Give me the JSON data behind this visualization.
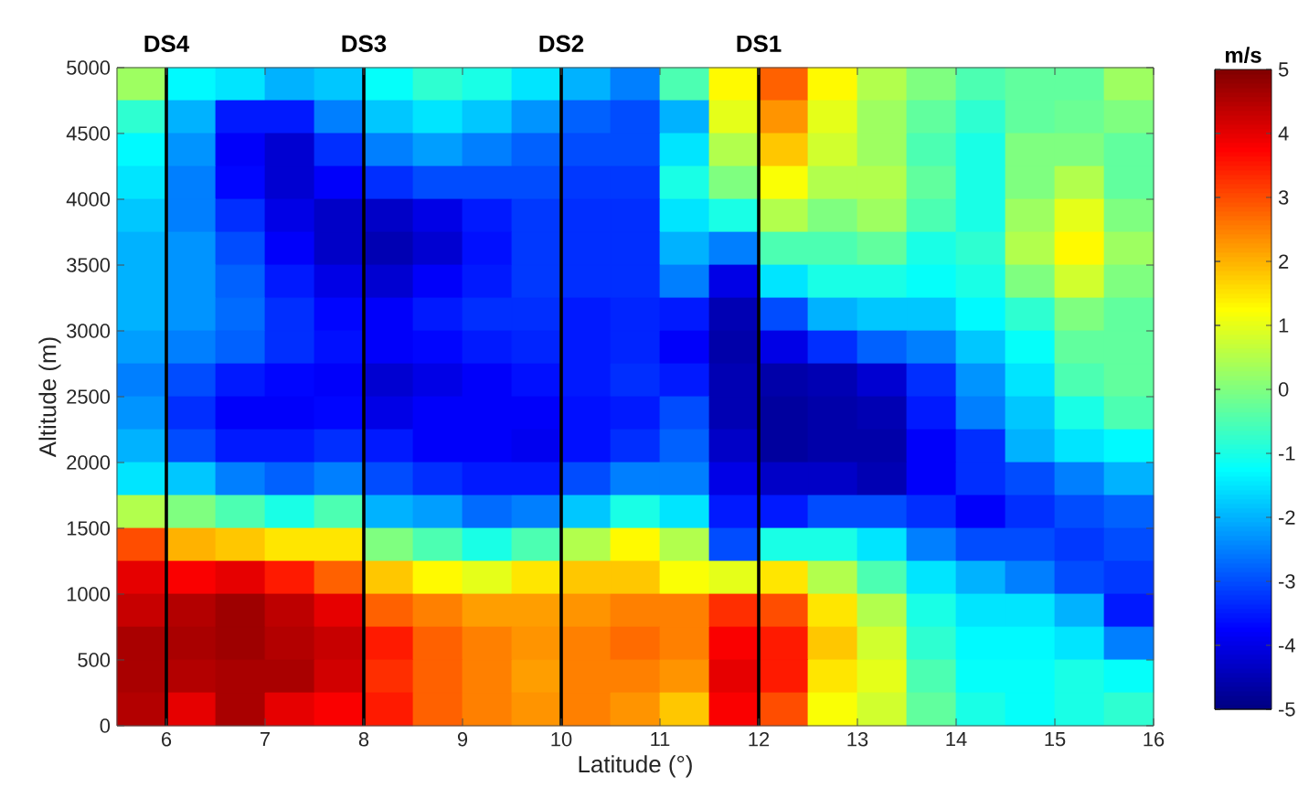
{
  "chart_data": {
    "type": "heatmap",
    "xlabel": "Latitude (°)",
    "ylabel": "Altitude (m)",
    "clabel": "m/s",
    "x": [
      5.75,
      6.25,
      6.75,
      7.25,
      7.75,
      8.25,
      8.75,
      9.25,
      9.75,
      10.25,
      10.75,
      11.25,
      11.75,
      12.25,
      12.75,
      13.25,
      13.75,
      14.25,
      14.75,
      15.25,
      15.75
    ],
    "y": [
      4875,
      4625,
      4375,
      4125,
      3875,
      3625,
      3375,
      3125,
      2875,
      2625,
      2375,
      2125,
      1875,
      1625,
      1375,
      1125,
      875,
      625,
      375,
      125
    ],
    "xlim": [
      5.5,
      16
    ],
    "xticks": [
      6,
      7,
      8,
      9,
      10,
      11,
      12,
      13,
      14,
      15,
      16
    ],
    "ylim": [
      0,
      5000
    ],
    "yticks": [
      0,
      500,
      1000,
      1500,
      2000,
      2500,
      3000,
      3500,
      4000,
      4500,
      5000
    ],
    "clim": [
      -5,
      5
    ],
    "cticks": [
      -5,
      -4,
      -3,
      -2,
      -1,
      0,
      1,
      2,
      3,
      4,
      5
    ],
    "ref_lines": [
      {
        "axis": "x",
        "value": 6,
        "label": "DS4",
        "color": "#000000"
      },
      {
        "axis": "x",
        "value": 8,
        "label": "DS3",
        "color": "#000000"
      },
      {
        "axis": "x",
        "value": 10,
        "label": "DS2",
        "color": "#000000"
      },
      {
        "axis": "x",
        "value": 12,
        "label": "DS1",
        "color": "#000000"
      }
    ],
    "cells": [
      [
        0.3,
        -1.3,
        -1.5,
        -2,
        -1.8,
        -1.2,
        -0.8,
        -1,
        -1.5,
        -2,
        -2.5,
        -0.5,
        1.3,
        2.8,
        1.3,
        0.5,
        0,
        -0.5,
        -0.3,
        -0.3,
        0.3
      ],
      [
        -0.8,
        -2,
        -3.5,
        -3.5,
        -2.5,
        -1.8,
        -1.5,
        -1.8,
        -2.3,
        -2.8,
        -3,
        -2,
        1,
        2.3,
        1,
        0.3,
        -0.3,
        -0.8,
        -0.3,
        -0.2,
        0
      ],
      [
        -1.3,
        -2.3,
        -3.8,
        -4.2,
        -3.3,
        -2.5,
        -2.2,
        -2.5,
        -2.8,
        -3,
        -3,
        -1.5,
        0.5,
        1.8,
        0.8,
        0.3,
        -0.5,
        -1,
        0,
        0,
        -0.3
      ],
      [
        -1.5,
        -2.5,
        -3.7,
        -4.2,
        -3.8,
        -3.3,
        -3,
        -3,
        -3,
        -3.2,
        -3.2,
        -1,
        0,
        1.2,
        0.5,
        0.5,
        -0.3,
        -1,
        0,
        0.5,
        -0.3
      ],
      [
        -1.8,
        -2.5,
        -3.3,
        -4,
        -4.3,
        -4.3,
        -4,
        -3.5,
        -3.2,
        -3.3,
        -3.3,
        -1.5,
        -1,
        0.5,
        0,
        0.3,
        -0.5,
        -1,
        0.3,
        1,
        0
      ],
      [
        -2,
        -2.3,
        -3,
        -3.8,
        -4.3,
        -4.5,
        -4.2,
        -3.6,
        -3.2,
        -3.3,
        -3.3,
        -2,
        -2.5,
        -0.5,
        -0.5,
        -0.3,
        -1,
        -0.8,
        0.5,
        1.3,
        0.3
      ],
      [
        -2,
        -2.3,
        -2.8,
        -3.5,
        -4,
        -4.2,
        -3.8,
        -3.5,
        -3.2,
        -3.3,
        -3.3,
        -2.5,
        -4,
        -1.5,
        -1,
        -1,
        -1.2,
        -1,
        0,
        0.8,
        0
      ],
      [
        -2,
        -2.3,
        -2.7,
        -3.3,
        -3.7,
        -3.8,
        -3.5,
        -3.3,
        -3.3,
        -3.5,
        -3.4,
        -3.5,
        -4.5,
        -3,
        -2,
        -1.8,
        -1.8,
        -1.3,
        -0.8,
        0,
        -0.3
      ],
      [
        -2.2,
        -2.5,
        -2.8,
        -3.3,
        -3.6,
        -3.8,
        -3.7,
        -3.5,
        -3.4,
        -3.5,
        -3.4,
        -3.8,
        -4.6,
        -4,
        -3.3,
        -2.8,
        -2.5,
        -1.8,
        -1.2,
        -0.3,
        -0.3
      ],
      [
        -2.5,
        -3,
        -3.5,
        -3.7,
        -3.8,
        -4.2,
        -4,
        -3.8,
        -3.6,
        -3.5,
        -3.3,
        -3.5,
        -4.5,
        -4.6,
        -4.5,
        -4.2,
        -3.3,
        -2.3,
        -1.5,
        -0.5,
        -0.3
      ],
      [
        -2.3,
        -3.3,
        -3.8,
        -3.8,
        -3.7,
        -4,
        -3.8,
        -3.8,
        -3.8,
        -3.6,
        -3.5,
        -3,
        -4.5,
        -4.7,
        -4.6,
        -4.5,
        -3.5,
        -2.5,
        -1.8,
        -1,
        -0.5
      ],
      [
        -2,
        -3,
        -3.5,
        -3.5,
        -3.3,
        -3.5,
        -3.8,
        -3.8,
        -3.9,
        -3.6,
        -3.3,
        -2.8,
        -4.3,
        -4.7,
        -4.6,
        -4.6,
        -3.8,
        -3.3,
        -2,
        -1.5,
        -1.3
      ],
      [
        -1.5,
        -1.8,
        -2.5,
        -2.8,
        -2.5,
        -3,
        -3.3,
        -3.5,
        -3.5,
        -3,
        -2.5,
        -2.5,
        -4,
        -4.3,
        -4.3,
        -4.5,
        -3.8,
        -3.3,
        -3,
        -2.5,
        -2
      ],
      [
        0.5,
        0,
        -0.5,
        -1,
        -0.5,
        -2,
        -2.2,
        -2.7,
        -2.5,
        -1.8,
        -1,
        -1.5,
        -3.5,
        -3.5,
        -3,
        -3,
        -3.3,
        -3.8,
        -3.3,
        -3,
        -2.8
      ],
      [
        3,
        2,
        1.8,
        1.5,
        1.5,
        0,
        -0.5,
        -1,
        -0.5,
        0.5,
        1.3,
        0.5,
        -3,
        -1,
        -1,
        -1.5,
        -2.5,
        -3,
        -3,
        -3.2,
        -3
      ],
      [
        4,
        3.8,
        4,
        3.5,
        2.8,
        1.8,
        1.3,
        1,
        1.5,
        1.8,
        1.8,
        1.2,
        1,
        1.5,
        0.5,
        -0.5,
        -1.5,
        -2,
        -2.5,
        -3,
        -3.2
      ],
      [
        4.3,
        4.5,
        4.7,
        4.4,
        4,
        2.8,
        2.5,
        2.2,
        2.2,
        2.3,
        2.5,
        2.5,
        3.3,
        3,
        1.5,
        0.5,
        -1,
        -1.5,
        -1.5,
        -2,
        -3.5
      ],
      [
        4.6,
        4.6,
        4.7,
        4.5,
        4.3,
        3.5,
        2.8,
        2.5,
        2.3,
        2.5,
        2.7,
        2.5,
        3.8,
        3.5,
        1.8,
        0.8,
        -0.8,
        -1.3,
        -1.3,
        -1.5,
        -2.5
      ],
      [
        4.6,
        4.5,
        4.6,
        4.6,
        4.2,
        3.3,
        2.8,
        2.5,
        2.2,
        2.5,
        2.5,
        2.3,
        4,
        3.5,
        1.5,
        1,
        -0.5,
        -1.2,
        -1.2,
        -1,
        -1.2
      ],
      [
        4.5,
        4,
        4.6,
        4,
        3.8,
        3.5,
        2.8,
        2.5,
        2.3,
        2.5,
        2.3,
        1.8,
        3.8,
        3,
        1.2,
        0.8,
        -0.3,
        -1,
        -1.2,
        -1,
        -0.8
      ]
    ]
  }
}
